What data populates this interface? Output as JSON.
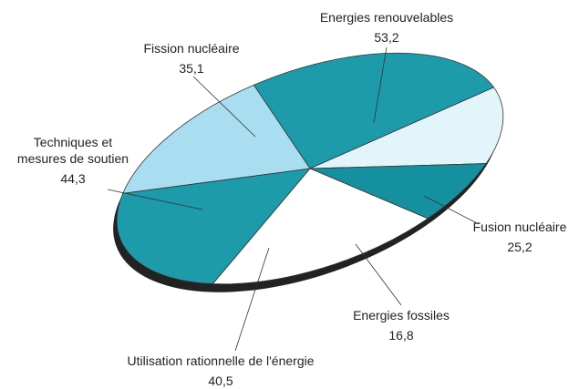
{
  "chart_data": {
    "type": "pie",
    "categories": [
      "Energies renouvelables",
      "Fusion nucléaire",
      "Energies fossiles",
      "Utilisation rationnelle de l'énergie",
      "Techniques et mesures de soutien",
      "Fission nucléaire"
    ],
    "values": [
      53.2,
      25.2,
      16.8,
      40.5,
      44.3,
      35.1
    ],
    "value_labels": [
      "53,2",
      "25,2",
      "16,8",
      "40,5",
      "44,3",
      "35,1"
    ],
    "colors": [
      "#1d9bab",
      "#e2f5fb",
      "#14909f",
      "#ffffff",
      "#1d9bab",
      "#a9def0"
    ]
  }
}
